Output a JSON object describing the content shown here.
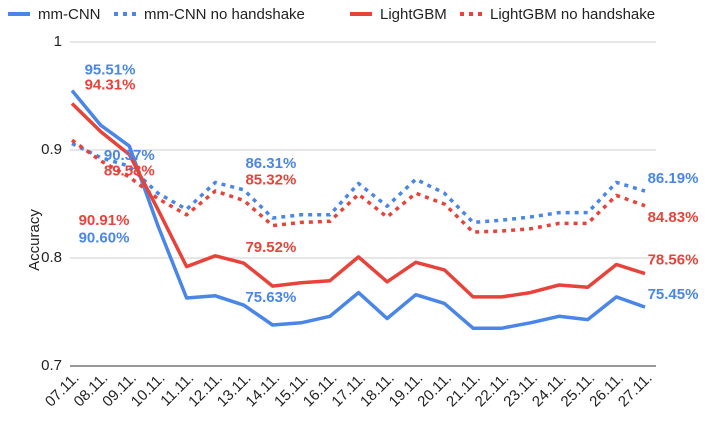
{
  "chart_data": {
    "type": "line",
    "y_label": "Accuracy",
    "categories": [
      "07.11.",
      "08.11.",
      "09.11.",
      "10.11.",
      "11.11.",
      "12.11.",
      "13.11.",
      "14.11.",
      "15.11.",
      "16.11.",
      "17.11.",
      "18.11.",
      "19.11.",
      "20.11.",
      "21.11.",
      "22.11.",
      "23.11.",
      "24.11.",
      "25.11.",
      "26.11.",
      "27.11."
    ],
    "ylim": [
      0.7,
      1
    ],
    "yticks": [
      0.7,
      0.8,
      0.9,
      1
    ],
    "grid": true,
    "legend": "top",
    "series": [
      {
        "name": "mm-CNN",
        "color": "#4a86e8",
        "line_style": "solid",
        "values": [
          0.9551,
          0.923,
          0.9037,
          0.83,
          0.763,
          0.765,
          0.7563,
          0.738,
          0.74,
          0.746,
          0.768,
          0.744,
          0.766,
          0.758,
          0.735,
          0.735,
          0.74,
          0.746,
          0.743,
          0.764,
          0.7545
        ],
        "value_labels": [
          "95.51%",
          null,
          "90.37%",
          null,
          null,
          null,
          "75.63%",
          null,
          null,
          null,
          null,
          null,
          null,
          null,
          null,
          null,
          null,
          null,
          null,
          null,
          "75.45%"
        ]
      },
      {
        "name": "mm-CNN no handshake",
        "color": "#4a86e8",
        "line_style": "dotted",
        "values": [
          0.906,
          0.893,
          0.885,
          0.86,
          0.845,
          0.87,
          0.8631,
          0.837,
          0.84,
          0.84,
          0.869,
          0.848,
          0.873,
          0.86,
          0.833,
          0.835,
          0.838,
          0.842,
          0.842,
          0.87,
          0.8619
        ],
        "value_labels": [
          "90.60%",
          null,
          null,
          null,
          null,
          null,
          "86.31%",
          null,
          null,
          null,
          null,
          null,
          null,
          null,
          null,
          null,
          null,
          null,
          null,
          null,
          "86.19%"
        ]
      },
      {
        "name": "LightGBM",
        "color": "#e8433a",
        "line_style": "solid",
        "values": [
          0.9431,
          0.917,
          0.8958,
          0.845,
          0.792,
          0.802,
          0.7952,
          0.774,
          0.777,
          0.779,
          0.801,
          0.778,
          0.796,
          0.789,
          0.764,
          0.764,
          0.768,
          0.775,
          0.773,
          0.794,
          0.7856
        ],
        "value_labels": [
          "94.31%",
          null,
          "89.58%",
          null,
          null,
          null,
          "79.52%",
          null,
          null,
          null,
          null,
          null,
          null,
          null,
          null,
          null,
          null,
          null,
          null,
          null,
          "78.56%"
        ]
      },
      {
        "name": "LightGBM no handshake",
        "color": "#e8433a",
        "line_style": "dotted",
        "values": [
          0.9091,
          0.89,
          0.875,
          0.855,
          0.84,
          0.862,
          0.8532,
          0.83,
          0.833,
          0.834,
          0.859,
          0.838,
          0.86,
          0.85,
          0.824,
          0.825,
          0.827,
          0.832,
          0.832,
          0.858,
          0.8483
        ],
        "value_labels": [
          "90.91%",
          null,
          null,
          null,
          null,
          null,
          "85.32%",
          null,
          null,
          null,
          null,
          null,
          null,
          null,
          null,
          null,
          null,
          null,
          null,
          null,
          "84.83%"
        ]
      }
    ]
  }
}
